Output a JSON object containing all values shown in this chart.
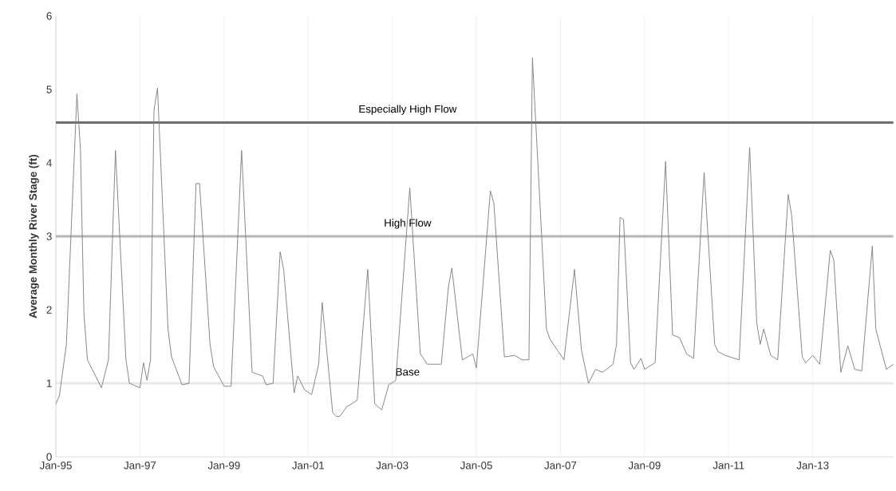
{
  "chart_data": {
    "type": "line",
    "ylabel": "Average Monthly River Stage (ft)",
    "x": [
      "1995-01",
      "1995-02",
      "1995-04",
      "1995-07",
      "1995-08",
      "1995-09",
      "1995-10",
      "1996-02",
      "1996-04",
      "1996-06",
      "1996-09",
      "1996-10",
      "1997-01",
      "1997-02",
      "1997-03",
      "1997-04",
      "1997-05",
      "1997-06",
      "1997-09",
      "1997-10",
      "1998-01",
      "1998-03",
      "1998-05",
      "1998-06",
      "1998-09",
      "1998-10",
      "1999-01",
      "1999-03",
      "1999-06",
      "1999-09",
      "1999-12",
      "2000-01",
      "2000-03",
      "2000-05",
      "2000-06",
      "2000-09",
      "2000-10",
      "2000-12",
      "2001-02",
      "2001-04",
      "2001-05",
      "2001-08",
      "2001-09",
      "2001-10",
      "2001-12",
      "2002-03",
      "2002-06",
      "2002-08",
      "2002-10",
      "2002-12",
      "2003-02",
      "2003-06",
      "2003-09",
      "2003-11",
      "2004-03",
      "2004-05",
      "2004-06",
      "2004-09",
      "2004-12",
      "2005-01",
      "2005-05",
      "2005-06",
      "2005-09",
      "2005-12",
      "2006-02",
      "2006-04",
      "2006-05",
      "2006-09",
      "2006-10",
      "2007-02",
      "2007-05",
      "2007-07",
      "2007-09",
      "2007-11",
      "2008-01",
      "2008-04",
      "2008-05",
      "2008-06",
      "2008-07",
      "2008-09",
      "2008-10",
      "2008-12",
      "2009-01",
      "2009-04",
      "2009-07",
      "2009-09",
      "2009-11",
      "2010-01",
      "2010-03",
      "2010-06",
      "2010-09",
      "2010-10",
      "2010-12",
      "2011-04",
      "2011-07",
      "2011-09",
      "2011-10",
      "2011-11",
      "2012-01",
      "2012-03",
      "2012-06",
      "2012-07",
      "2012-10",
      "2012-11",
      "2013-01",
      "2013-03",
      "2013-06",
      "2013-07",
      "2013-09",
      "2013-11",
      "2014-01",
      "2014-03",
      "2014-06",
      "2014-07",
      "2014-10",
      "2014-12"
    ],
    "values": [
      0.72,
      0.83,
      1.53,
      4.94,
      4.2,
      1.96,
      1.32,
      0.94,
      1.32,
      4.17,
      1.32,
      1.0,
      0.94,
      1.28,
      1.04,
      1.32,
      4.72,
      5.02,
      1.74,
      1.36,
      0.98,
      1.0,
      3.72,
      3.72,
      1.53,
      1.23,
      0.96,
      0.96,
      4.17,
      1.15,
      1.1,
      0.98,
      1.0,
      2.79,
      2.55,
      0.87,
      1.1,
      0.91,
      0.85,
      1.26,
      2.1,
      0.6,
      0.55,
      0.55,
      0.68,
      0.77,
      2.55,
      0.72,
      0.64,
      0.98,
      1.04,
      3.66,
      1.4,
      1.26,
      1.26,
      2.3,
      2.57,
      1.32,
      1.4,
      1.21,
      3.62,
      3.45,
      1.36,
      1.38,
      1.32,
      1.32,
      5.43,
      1.74,
      1.6,
      1.32,
      2.55,
      1.45,
      1.0,
      1.19,
      1.15,
      1.26,
      1.53,
      3.26,
      3.23,
      1.28,
      1.19,
      1.34,
      1.19,
      1.28,
      4.02,
      1.66,
      1.62,
      1.4,
      1.34,
      3.87,
      1.53,
      1.43,
      1.38,
      1.32,
      4.21,
      1.83,
      1.53,
      1.74,
      1.38,
      1.32,
      3.57,
      3.28,
      1.36,
      1.28,
      1.38,
      1.26,
      2.81,
      2.68,
      1.15,
      1.51,
      1.19,
      1.17,
      2.87,
      1.74,
      1.19,
      1.26
    ],
    "color": "#808080",
    "line_style": "solid",
    "marker": "none",
    "grid": "x",
    "xlim": [
      "1995-01",
      "2014-12"
    ],
    "xticks": [
      {
        "value": "1995-01",
        "label": "Jan-95"
      },
      {
        "value": "1997-01",
        "label": "Jan-97"
      },
      {
        "value": "1999-01",
        "label": "Jan-99"
      },
      {
        "value": "2001-01",
        "label": "Jan-01"
      },
      {
        "value": "2003-01",
        "label": "Jan-03"
      },
      {
        "value": "2005-01",
        "label": "Jan-05"
      },
      {
        "value": "2007-01",
        "label": "Jan-07"
      },
      {
        "value": "2009-01",
        "label": "Jan-09"
      },
      {
        "value": "2011-01",
        "label": "Jan-11"
      },
      {
        "value": "2013-01",
        "label": "Jan-13"
      }
    ],
    "ylim": [
      0,
      6
    ],
    "yticks": [
      0,
      1,
      2,
      3,
      4,
      5,
      6
    ],
    "ref_lines": [
      {
        "axis": "y",
        "value": 4.55,
        "label": "Especially High Flow",
        "color": "#6e6e6e"
      },
      {
        "axis": "y",
        "value": 3,
        "label": "High Flow",
        "color": "#b4b4b4"
      },
      {
        "axis": "y",
        "value": 1,
        "label": "Base",
        "color": "#e6e6e6"
      }
    ]
  }
}
